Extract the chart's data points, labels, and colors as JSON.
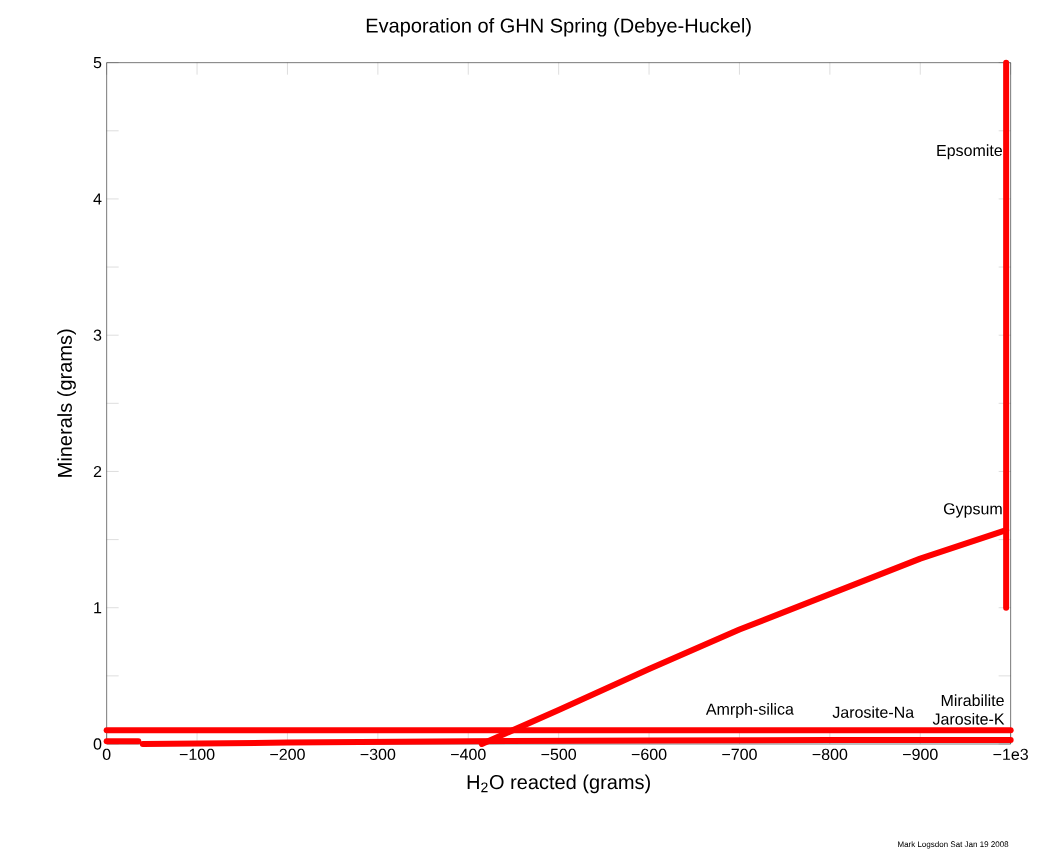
{
  "chart_data": {
    "type": "line",
    "title": "Evaporation of GHN Spring (Debye-Huckel)",
    "xlabel": "H$_{2}$O reacted (grams)",
    "ylabel": "Minerals (grams)",
    "xlim": [
      0,
      -1000
    ],
    "ylim": [
      0,
      5
    ],
    "xticks": [
      0,
      {
        "value": -100,
        "label": "−100"
      },
      {
        "value": -200,
        "label": "−200"
      },
      {
        "value": -300,
        "label": "−300"
      },
      {
        "value": -400,
        "label": "−400"
      },
      {
        "value": -500,
        "label": "−500"
      },
      {
        "value": -600,
        "label": "−600"
      },
      {
        "value": -700,
        "label": "−700"
      },
      {
        "value": -800,
        "label": "−800"
      },
      {
        "value": -900,
        "label": "−900"
      },
      {
        "value": -1000,
        "label": "−1e3"
      }
    ],
    "yticks": [
      0,
      {
        "value": 0.5,
        "label": null
      },
      1,
      {
        "value": 1.5,
        "label": null
      },
      2,
      {
        "value": 2.5,
        "label": null
      },
      3,
      {
        "value": 3.5,
        "label": null
      },
      4,
      {
        "value": 4.5,
        "label": null
      },
      5
    ],
    "grid": false,
    "marker": "none",
    "line_style": "solid",
    "series": [
      {
        "color": "#ff0000",
        "x": [
          -995,
          -995
        ],
        "values": [
          1.0,
          5.0
        ]
      },
      {
        "color": "#ff0000",
        "x": [
          -415,
          -500,
          -600,
          -700,
          -800,
          -900,
          -995
        ],
        "values": [
          0,
          0.25,
          0.55,
          0.84,
          1.1,
          1.36,
          1.57
        ]
      },
      {
        "color": "#ff0000",
        "x": [
          0,
          -1000
        ],
        "values": [
          0.1,
          0.1
        ]
      },
      {
        "color": "#ff0000",
        "x": [
          0,
          -35
        ],
        "values": [
          0.02,
          0.02
        ]
      },
      {
        "color": "#ff0000",
        "x": [
          -40,
          -200,
          -400,
          -600,
          -800,
          -1000
        ],
        "values": [
          0,
          0.01,
          0.02,
          0.025,
          0.03,
          0.03
        ]
      }
    ],
    "annotations": [
      {
        "text": "Epsomite",
        "x": -993,
        "y": 4.25
      },
      {
        "text": "Gypsum",
        "x": -993,
        "y": 1.62
      },
      {
        "text": "Amrph-silica",
        "x": -762,
        "y": 0.15
      },
      {
        "text": "Jarosite-Na",
        "x": -895,
        "y": 0.15
      },
      {
        "text": "Jarosite-K",
        "x": -995,
        "y": 0.1
      },
      {
        "text": "Mirabilite",
        "x": -995,
        "y": 0.1
      },
      "Mark Logsdon Sat Jan 19 2008"
    ]
  }
}
